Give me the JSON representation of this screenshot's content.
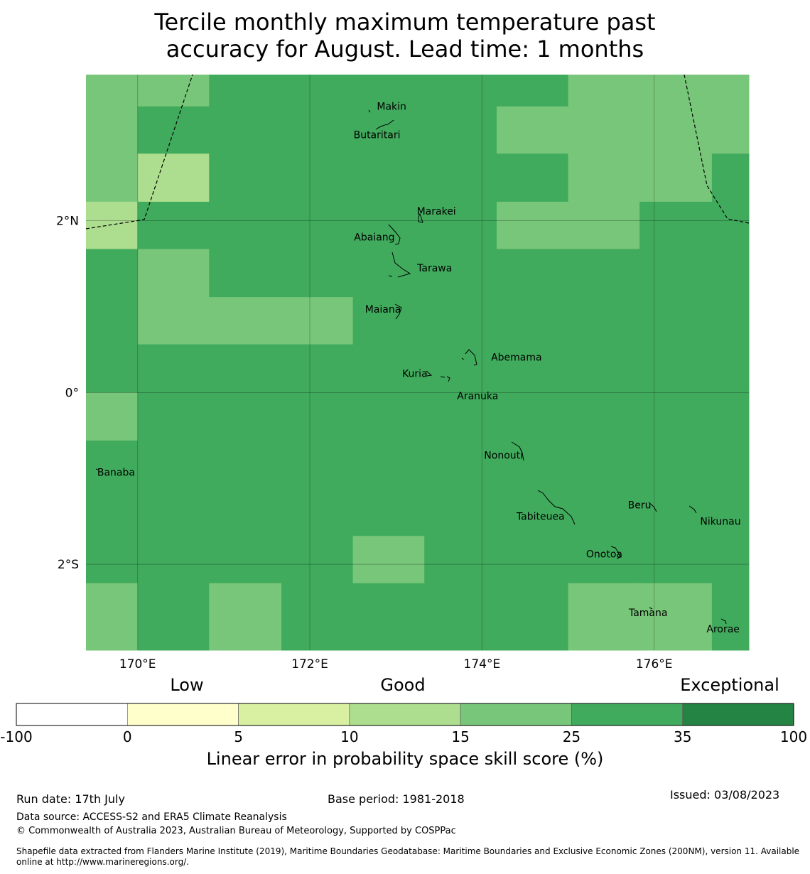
{
  "title_line1": "Tercile monthly maximum temperature past",
  "title_line2": "accuracy for August. Lead time: 1 months",
  "map": {
    "lon_min": 169.4,
    "lon_max": 177.1,
    "lat_min": -3.0,
    "lat_max": 3.7,
    "x_ticks": [
      {
        "lon": 170,
        "label": "170°E"
      },
      {
        "lon": 172,
        "label": "172°E"
      },
      {
        "lon": 174,
        "label": "174°E"
      },
      {
        "lon": 176,
        "label": "176°E"
      }
    ],
    "y_ticks": [
      {
        "lat": 2,
        "label": "2°N"
      },
      {
        "lat": 0,
        "label": "0°"
      },
      {
        "lat": -2,
        "label": "2°S"
      }
    ],
    "places": [
      {
        "name": "Makin",
        "lon": 172.95,
        "lat": 3.33
      },
      {
        "name": "Butaritari",
        "lon": 172.78,
        "lat": 3.0
      },
      {
        "name": "Marakei",
        "lon": 173.47,
        "lat": 2.11
      },
      {
        "name": "Abaiang",
        "lon": 172.75,
        "lat": 1.81
      },
      {
        "name": "Tarawa",
        "lon": 173.45,
        "lat": 1.45
      },
      {
        "name": "Maiana",
        "lon": 172.85,
        "lat": 0.97
      },
      {
        "name": "Abemama",
        "lon": 174.4,
        "lat": 0.41
      },
      {
        "name": "Kuria",
        "lon": 173.22,
        "lat": 0.22
      },
      {
        "name": "Aranuka",
        "lon": 173.95,
        "lat": -0.04
      },
      {
        "name": "Nonouti",
        "lon": 174.25,
        "lat": -0.73
      },
      {
        "name": "Banaba",
        "lon": 169.75,
        "lat": -0.93
      },
      {
        "name": "Beru",
        "lon": 175.83,
        "lat": -1.31
      },
      {
        "name": "Tabiteuea",
        "lon": 174.68,
        "lat": -1.44
      },
      {
        "name": "Nikunau",
        "lon": 176.77,
        "lat": -1.5
      },
      {
        "name": "Onotoa",
        "lon": 175.42,
        "lat": -1.88
      },
      {
        "name": "Tamana",
        "lon": 175.93,
        "lat": -2.56
      },
      {
        "name": "Arorae",
        "lon": 176.8,
        "lat": -2.75
      }
    ],
    "grid_lon_edges": [
      169.4,
      170.0,
      170.83,
      171.67,
      172.5,
      173.33,
      174.17,
      175.0,
      175.83,
      176.67,
      177.1
    ],
    "grid_lat_edges": [
      3.7,
      3.33,
      2.78,
      2.22,
      1.67,
      1.11,
      0.56,
      0.0,
      -0.56,
      -1.11,
      -1.67,
      -2.22,
      -2.78,
      -3.0
    ],
    "score_bins": [
      "4455555444",
      "4555554444",
      "4455555445",
      "4555554455",
      "5455555555",
      "5444555555",
      "5555555555",
      "4555555555",
      "5555555555",
      "5555555555",
      "5555455555",
      "4545555445",
      "4545555445"
    ],
    "bin_overrides": [
      {
        "row": 0,
        "col": 1,
        "bin": 4
      },
      {
        "row": 0,
        "col": 2,
        "bin": 5
      },
      {
        "row": 1,
        "col": 1,
        "bin": 5
      },
      {
        "row": 2,
        "col": 1,
        "bin": 3
      },
      {
        "row": 3,
        "col": 0,
        "bin": 3
      }
    ]
  },
  "colorbar": {
    "categories": [
      "Low",
      "Good",
      "Exceptional"
    ],
    "boundaries": [
      "-100",
      "0",
      "5",
      "10",
      "15",
      "25",
      "35",
      "100"
    ],
    "colors": [
      "#ffffff",
      "#ffffcc",
      "#d9f0a3",
      "#addd8e",
      "#78c679",
      "#41ab5d",
      "#238443"
    ],
    "label": "Linear error in probability space skill score (%)"
  },
  "footer": {
    "run_date": "Run date: 17th July",
    "base_period": "Base period: 1981-2018",
    "issued": "Issued: 03/08/2023",
    "data_source": "Data source: ACCESS-S2 and ERA5 Climate Reanalysis",
    "copyright": "© Commonwealth of Australia 2023, Australian Bureau of Meteorology, Supported by COSPPac",
    "shapefile_line1": "Shapefile data extracted from Flanders Marine Institute (2019), Maritime Boundaries Geodatabase: Maritime Boundaries and Exclusive Economic Zones (200NM), version 11. Available",
    "shapefile_line2": "online at http://www.marineregions.org/."
  }
}
